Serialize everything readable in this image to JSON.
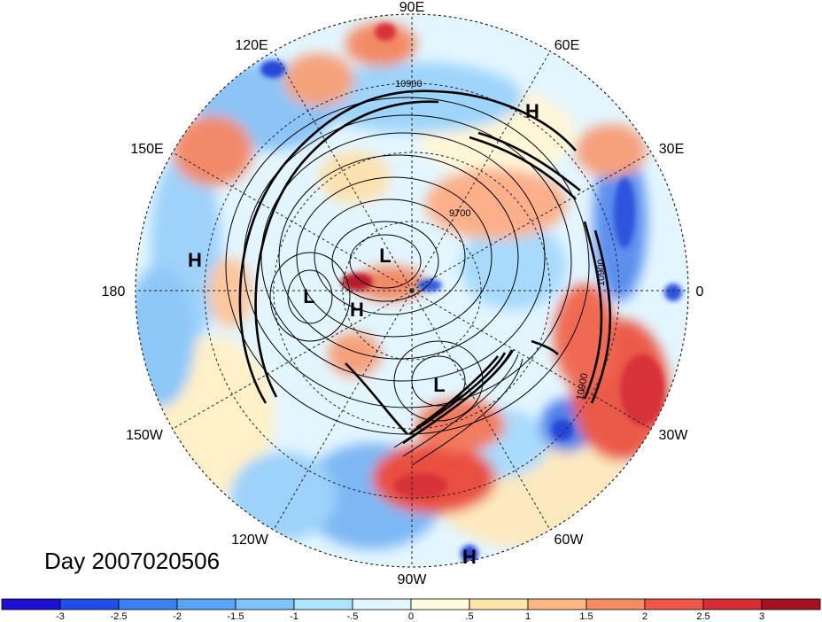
{
  "title": "Day 2007020506",
  "longitude_labels": {
    "top": "90E",
    "upper_left": "120E",
    "upper_right": "60E",
    "left_upper": "150E",
    "right_upper": "30E",
    "left": "180",
    "right": "0",
    "left_lower": "150W",
    "right_lower": "30W",
    "lower_left": "120W",
    "lower_right": "60W",
    "bottom": "90W"
  },
  "pressure_centers": [
    {
      "label": "H",
      "id": "h-north-europe"
    },
    {
      "label": "H",
      "id": "h-pacific"
    },
    {
      "label": "L",
      "id": "l-pole"
    },
    {
      "label": "L",
      "id": "l-siberia"
    },
    {
      "label": "H",
      "id": "h-alaska"
    },
    {
      "label": "L",
      "id": "l-canada"
    },
    {
      "label": "H",
      "id": "h-southeast"
    }
  ],
  "contour_labels": {
    "a": "10900",
    "b": "9700",
    "c": "10900",
    "d": "10900"
  },
  "colorbar": {
    "ticks": [
      "-3",
      "-2.5",
      "-2",
      "-1.5",
      "-1",
      "-.5",
      "0",
      ".5",
      "1",
      "1.5",
      "2",
      "2.5",
      "3"
    ],
    "colors": [
      "#1a0fd2",
      "#1f4fe6",
      "#3a80f0",
      "#5aa4f6",
      "#7ec4fb",
      "#aee4fd",
      "#e2f6ff",
      "#fffbe0",
      "#fde4a8",
      "#fbb882",
      "#f68a63",
      "#ee5648",
      "#d62c33",
      "#a5121f"
    ]
  }
}
